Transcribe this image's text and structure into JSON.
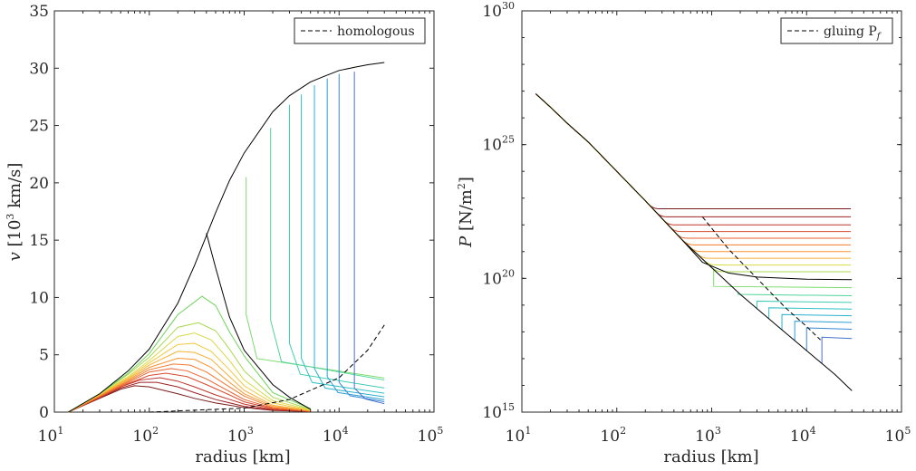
{
  "chart_data": [
    {
      "type": "line",
      "xscale": "log",
      "yscale": "linear",
      "xlim": [
        10,
        100000
      ],
      "ylim": [
        0,
        35
      ],
      "xticks": [
        {
          "base": "10",
          "exp": "1",
          "v": 10
        },
        {
          "base": "10",
          "exp": "2",
          "v": 100
        },
        {
          "base": "10",
          "exp": "3",
          "v": 1000
        },
        {
          "base": "10",
          "exp": "4",
          "v": 10000
        },
        {
          "base": "10",
          "exp": "5",
          "v": 100000
        }
      ],
      "yticks": [
        {
          "label": "0",
          "v": 0
        },
        {
          "label": "5",
          "v": 5
        },
        {
          "label": "10",
          "v": 10
        },
        {
          "label": "15",
          "v": 15
        },
        {
          "label": "20",
          "v": 20
        },
        {
          "label": "25",
          "v": 25
        },
        {
          "label": "30",
          "v": 30
        },
        {
          "label": "35",
          "v": 35
        }
      ],
      "xlabel": "radius [km]",
      "ylabel": {
        "pre": "v",
        "mid": " [10",
        "sup": "3",
        "post": " km/s]"
      },
      "legend": {
        "label": "homologous",
        "position": "top-right"
      },
      "grid": false,
      "envelope": {
        "x": [
          14,
          30,
          60,
          100,
          200,
          300,
          500,
          700,
          1000,
          2000,
          3000,
          5000,
          7000,
          10000,
          15000,
          20000,
          30000
        ],
        "y": [
          0,
          1.6,
          3.6,
          5.5,
          9.5,
          12.8,
          17.4,
          20.2,
          22.6,
          26.2,
          27.6,
          28.8,
          29.3,
          29.8,
          30.1,
          30.3,
          30.5
        ]
      },
      "shock_front": {
        "x": [
          400,
          500,
          700,
          1000,
          2000,
          3000,
          5000
        ],
        "y": [
          15.6,
          12.6,
          8.3,
          5.4,
          2.4,
          1.3,
          0.25
        ]
      },
      "homologous": {
        "x": [
          100,
          1000,
          3000,
          10000,
          20000,
          30000
        ],
        "y": [
          0,
          0.35,
          1.1,
          3.0,
          5.4,
          7.6
        ]
      },
      "profiles": [
        {
          "x": [
            14,
            30,
            50,
            70,
            100,
            200,
            300,
            500,
            1000,
            2000,
            5000
          ],
          "y": [
            0,
            1.2,
            2.0,
            2.3,
            2.2,
            1.6,
            1.2,
            0.8,
            0.4,
            0.15,
            0.05
          ],
          "color": "#7a1a1a"
        },
        {
          "x": [
            14,
            30,
            50,
            80,
            120,
            200,
            300,
            500,
            1000,
            2000,
            5000
          ],
          "y": [
            0,
            1.25,
            2.1,
            2.6,
            2.6,
            2.2,
            1.7,
            1.1,
            0.5,
            0.18,
            0.05
          ],
          "color": "#9e2222"
        },
        {
          "x": [
            14,
            30,
            50,
            80,
            130,
            200,
            300,
            500,
            1000,
            2000,
            5000
          ],
          "y": [
            0,
            1.3,
            2.2,
            2.8,
            3.0,
            2.7,
            2.2,
            1.5,
            0.7,
            0.22,
            0.06
          ],
          "color": "#c0332a"
        },
        {
          "x": [
            14,
            30,
            60,
            100,
            150,
            250,
            400,
            700,
            1000,
            2000,
            5000
          ],
          "y": [
            0,
            1.3,
            2.5,
            3.2,
            3.4,
            3.1,
            2.4,
            1.5,
            0.9,
            0.3,
            0.07
          ],
          "color": "#d84a2e"
        },
        {
          "x": [
            14,
            30,
            60,
            100,
            170,
            250,
            400,
            700,
            1000,
            2000,
            5000
          ],
          "y": [
            0,
            1.35,
            2.6,
            3.5,
            3.8,
            3.6,
            2.9,
            1.8,
            1.1,
            0.35,
            0.08
          ],
          "color": "#e8622e"
        },
        {
          "x": [
            14,
            30,
            60,
            100,
            180,
            270,
            400,
            700,
            1000,
            2000,
            5000
          ],
          "y": [
            0,
            1.4,
            2.7,
            3.7,
            4.2,
            4.1,
            3.5,
            2.2,
            1.4,
            0.4,
            0.09
          ],
          "color": "#f27b2c"
        },
        {
          "x": [
            14,
            30,
            60,
            100,
            200,
            300,
            450,
            700,
            1000,
            2000,
            5000
          ],
          "y": [
            0,
            1.45,
            2.8,
            3.9,
            4.7,
            4.6,
            3.9,
            2.6,
            1.6,
            0.5,
            0.1
          ],
          "color": "#f7962f"
        },
        {
          "x": [
            14,
            30,
            60,
            100,
            200,
            300,
            450,
            700,
            1000,
            2000,
            5000
          ],
          "y": [
            0,
            1.5,
            2.9,
            4.1,
            5.3,
            5.2,
            4.6,
            3.1,
            1.9,
            0.6,
            0.12
          ],
          "color": "#f9b036"
        },
        {
          "x": [
            14,
            30,
            60,
            100,
            200,
            300,
            450,
            700,
            1000,
            2000,
            5000
          ],
          "y": [
            0,
            1.55,
            3.0,
            4.3,
            5.9,
            6.0,
            5.3,
            3.7,
            2.3,
            0.8,
            0.15
          ],
          "color": "#f2c93e"
        },
        {
          "x": [
            14,
            30,
            60,
            100,
            200,
            300,
            450,
            700,
            1000,
            2000,
            5000
          ],
          "y": [
            0,
            1.6,
            3.1,
            4.5,
            6.6,
            6.9,
            6.3,
            4.5,
            2.8,
            1.0,
            0.2
          ],
          "color": "#d9d946"
        },
        {
          "x": [
            14,
            30,
            60,
            100,
            200,
            330,
            500,
            700,
            1000,
            2000,
            5000
          ],
          "y": [
            0,
            1.6,
            3.3,
            4.8,
            7.4,
            7.8,
            7.1,
            5.5,
            3.6,
            1.3,
            0.25
          ],
          "color": "#a8d84d"
        },
        {
          "x": [
            14,
            30,
            60,
            100,
            200,
            360,
            500,
            700,
            1000,
            2000,
            5000
          ],
          "y": [
            0,
            1.6,
            3.4,
            5.1,
            8.5,
            10.1,
            9.3,
            7.0,
            4.9,
            1.7,
            0.3
          ],
          "color": "#6fd35a"
        }
      ],
      "step_profiles": [
        {
          "xs": 1050,
          "vtop": 20.5,
          "vbot": 8.5,
          "color": "#7bdc6c"
        },
        {
          "xs": 1900,
          "vtop": 24.8,
          "vbot": 8.0,
          "color": "#4fd49a"
        },
        {
          "xs": 3000,
          "vtop": 26.8,
          "vbot": 6.0,
          "color": "#3ecdb4"
        },
        {
          "xs": 4000,
          "vtop": 27.7,
          "vbot": 4.7,
          "color": "#2fc2c6"
        },
        {
          "xs": 5500,
          "vtop": 28.5,
          "vbot": 3.8,
          "color": "#2ab1cf"
        },
        {
          "xs": 7500,
          "vtop": 29.1,
          "vbot": 3.1,
          "color": "#2d9dd3"
        },
        {
          "xs": 10000,
          "vtop": 29.5,
          "vbot": 2.6,
          "color": "#3787d3"
        },
        {
          "xs": 14500,
          "vtop": 29.7,
          "vbot": 2.1,
          "color": "#4470cc"
        }
      ]
    },
    {
      "type": "line",
      "xscale": "log",
      "yscale": "log",
      "xlim": [
        10,
        100000
      ],
      "ylim": [
        1000000000000000.0,
        1e+30
      ],
      "xticks": [
        {
          "base": "10",
          "exp": "1",
          "v": 10
        },
        {
          "base": "10",
          "exp": "2",
          "v": 100
        },
        {
          "base": "10",
          "exp": "3",
          "v": 1000
        },
        {
          "base": "10",
          "exp": "4",
          "v": 10000
        },
        {
          "base": "10",
          "exp": "5",
          "v": 100000
        }
      ],
      "yticks": [
        {
          "base": "10",
          "exp": "15",
          "v": 15
        },
        {
          "base": "10",
          "exp": "20",
          "v": 20
        },
        {
          "base": "10",
          "exp": "25",
          "v": 25
        },
        {
          "base": "10",
          "exp": "30",
          "v": 30
        }
      ],
      "xlabel": "radius [km]",
      "ylabel": {
        "pre": "P",
        "mid": " [N/m",
        "sup": "2",
        "post": "]"
      },
      "legend": {
        "label": "gluing P",
        "label_sub": "f",
        "position": "top-right"
      },
      "grid": false,
      "base_curve": {
        "x": [
          14,
          20,
          30,
          50,
          100,
          200,
          500,
          1000,
          2000,
          5000,
          10000,
          20000,
          30000
        ],
        "logy": [
          26.9,
          26.4,
          25.8,
          25.1,
          24.0,
          22.9,
          21.4,
          20.4,
          19.4,
          18.2,
          17.3,
          16.4,
          15.8
        ]
      },
      "flat_curves": [
        {
          "plateau": 22.6,
          "color": "#7a1a1a"
        },
        {
          "plateau": 22.3,
          "color": "#9e2222"
        },
        {
          "plateau": 22.0,
          "color": "#c0332a"
        },
        {
          "plateau": 21.75,
          "color": "#d84a2e"
        },
        {
          "plateau": 21.5,
          "color": "#e8622e"
        },
        {
          "plateau": 21.25,
          "color": "#f27b2c"
        },
        {
          "plateau": 21.0,
          "color": "#f7962f"
        },
        {
          "plateau": 20.75,
          "color": "#f9b036"
        },
        {
          "plateau": 20.5,
          "color": "#d9d946"
        },
        {
          "plateau": 20.25,
          "color": "#a8d84d"
        }
      ],
      "black_profile": {
        "plateau": 19.95,
        "color": "#000000"
      },
      "step_profiles": [
        {
          "xs": 1050,
          "plateau": 19.7,
          "color": "#7bdc6c"
        },
        {
          "xs": 1900,
          "plateau": 19.4,
          "color": "#4fd49a"
        },
        {
          "xs": 3000,
          "plateau": 19.15,
          "color": "#3ecdb4"
        },
        {
          "xs": 4000,
          "plateau": 18.9,
          "color": "#2fc2c6"
        },
        {
          "xs": 5500,
          "plateau": 18.65,
          "color": "#2ab1cf"
        },
        {
          "xs": 7500,
          "plateau": 18.4,
          "color": "#2d9dd3"
        },
        {
          "xs": 10000,
          "plateau": 18.15,
          "color": "#3787d3"
        },
        {
          "xs": 14500,
          "plateau": 17.8,
          "color": "#4470cc"
        }
      ],
      "gluing": {
        "x": [
          800,
          1500,
          3000,
          6000,
          10000,
          14000
        ],
        "logy": [
          22.3,
          21.1,
          20.0,
          18.9,
          18.2,
          17.7
        ]
      }
    }
  ]
}
